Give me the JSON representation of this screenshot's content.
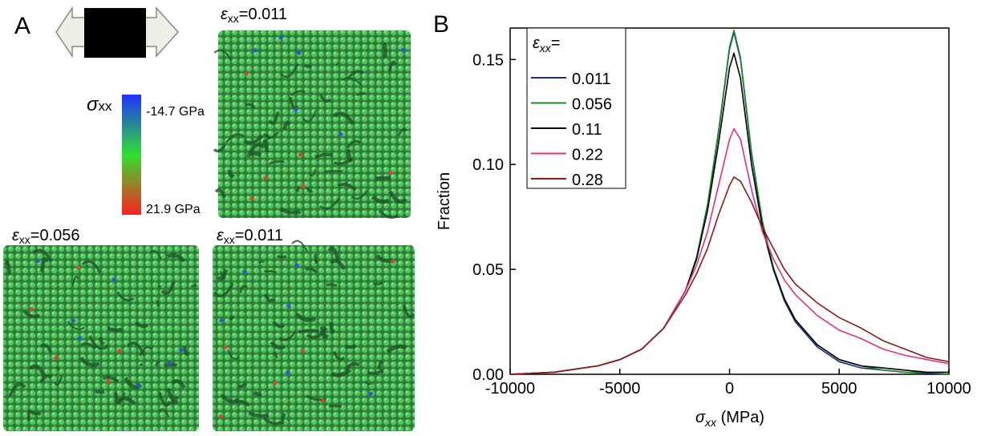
{
  "panel_a": {
    "panel_label": "A",
    "top_image_label": {
      "symbol": "ε",
      "subscript": "xx",
      "value": "=0.011"
    },
    "colorbar": {
      "symbol": "σ",
      "subscript": "xx",
      "max_label": "-14.7 GPa",
      "min_label": "21.9 GPa"
    },
    "bottom_left_label": {
      "symbol": "ε",
      "subscript": "xx",
      "value": "=0.056"
    },
    "bottom_right_label": {
      "symbol": "ε",
      "subscript": "xx",
      "value": "=0.011"
    }
  },
  "chart_data": {
    "type": "line",
    "panel_label": "B",
    "y_label": "Fraction",
    "x_label": {
      "symbol": "σ",
      "subscript": "xx",
      "unit": " (MPa)"
    },
    "legend_title": {
      "symbol": "ε",
      "subscript": "xx",
      "suffix": "="
    },
    "x": [
      -10000,
      -8000,
      -6000,
      -5000,
      -4000,
      -3000,
      -2000,
      -1500,
      -1000,
      -500,
      0,
      200,
      500,
      1000,
      1500,
      2000,
      2500,
      3000,
      4000,
      5000,
      6000,
      7000,
      8000,
      9000,
      10000
    ],
    "series": [
      {
        "name": "0.011",
        "color": "#1f2a8c",
        "values": [
          0,
          0.001,
          0.004,
          0.007,
          0.012,
          0.022,
          0.04,
          0.055,
          0.08,
          0.115,
          0.155,
          0.163,
          0.15,
          0.105,
          0.072,
          0.05,
          0.035,
          0.025,
          0.013,
          0.006,
          0.003,
          0.002,
          0.001,
          0.0005,
          0
        ]
      },
      {
        "name": "0.056",
        "color": "#1a8a2a",
        "values": [
          0,
          0.001,
          0.004,
          0.007,
          0.012,
          0.022,
          0.04,
          0.056,
          0.081,
          0.116,
          0.156,
          0.164,
          0.151,
          0.106,
          0.073,
          0.051,
          0.036,
          0.026,
          0.014,
          0.007,
          0.004,
          0.002,
          0.001,
          0.001,
          0
        ]
      },
      {
        "name": "0.11",
        "color": "#000000",
        "values": [
          0,
          0.001,
          0.004,
          0.007,
          0.012,
          0.022,
          0.04,
          0.055,
          0.078,
          0.11,
          0.146,
          0.153,
          0.141,
          0.1,
          0.07,
          0.05,
          0.036,
          0.026,
          0.014,
          0.007,
          0.004,
          0.003,
          0.002,
          0.001,
          0.001
        ]
      },
      {
        "name": "0.22",
        "color": "#e0307f",
        "values": [
          0,
          0.001,
          0.004,
          0.007,
          0.012,
          0.022,
          0.04,
          0.052,
          0.068,
          0.09,
          0.112,
          0.117,
          0.112,
          0.088,
          0.068,
          0.055,
          0.045,
          0.038,
          0.028,
          0.021,
          0.017,
          0.012,
          0.009,
          0.007,
          0.005
        ]
      },
      {
        "name": "0.28",
        "color": "#8b1a1a",
        "values": [
          0,
          0.001,
          0.004,
          0.007,
          0.012,
          0.022,
          0.038,
          0.048,
          0.06,
          0.076,
          0.09,
          0.094,
          0.092,
          0.082,
          0.07,
          0.06,
          0.05,
          0.043,
          0.034,
          0.027,
          0.022,
          0.016,
          0.012,
          0.008,
          0.006
        ]
      }
    ],
    "xlim": [
      -10000,
      10000
    ],
    "ylim": [
      0,
      0.165
    ],
    "xticks": [
      -10000,
      -5000,
      0,
      5000,
      10000
    ],
    "yticks": [
      {
        "value": 0,
        "label": "0.00"
      },
      {
        "value": 0.05,
        "label": "0.05"
      },
      {
        "value": 0.1,
        "label": "0.10"
      },
      {
        "value": 0.15,
        "label": "0.15"
      }
    ]
  }
}
